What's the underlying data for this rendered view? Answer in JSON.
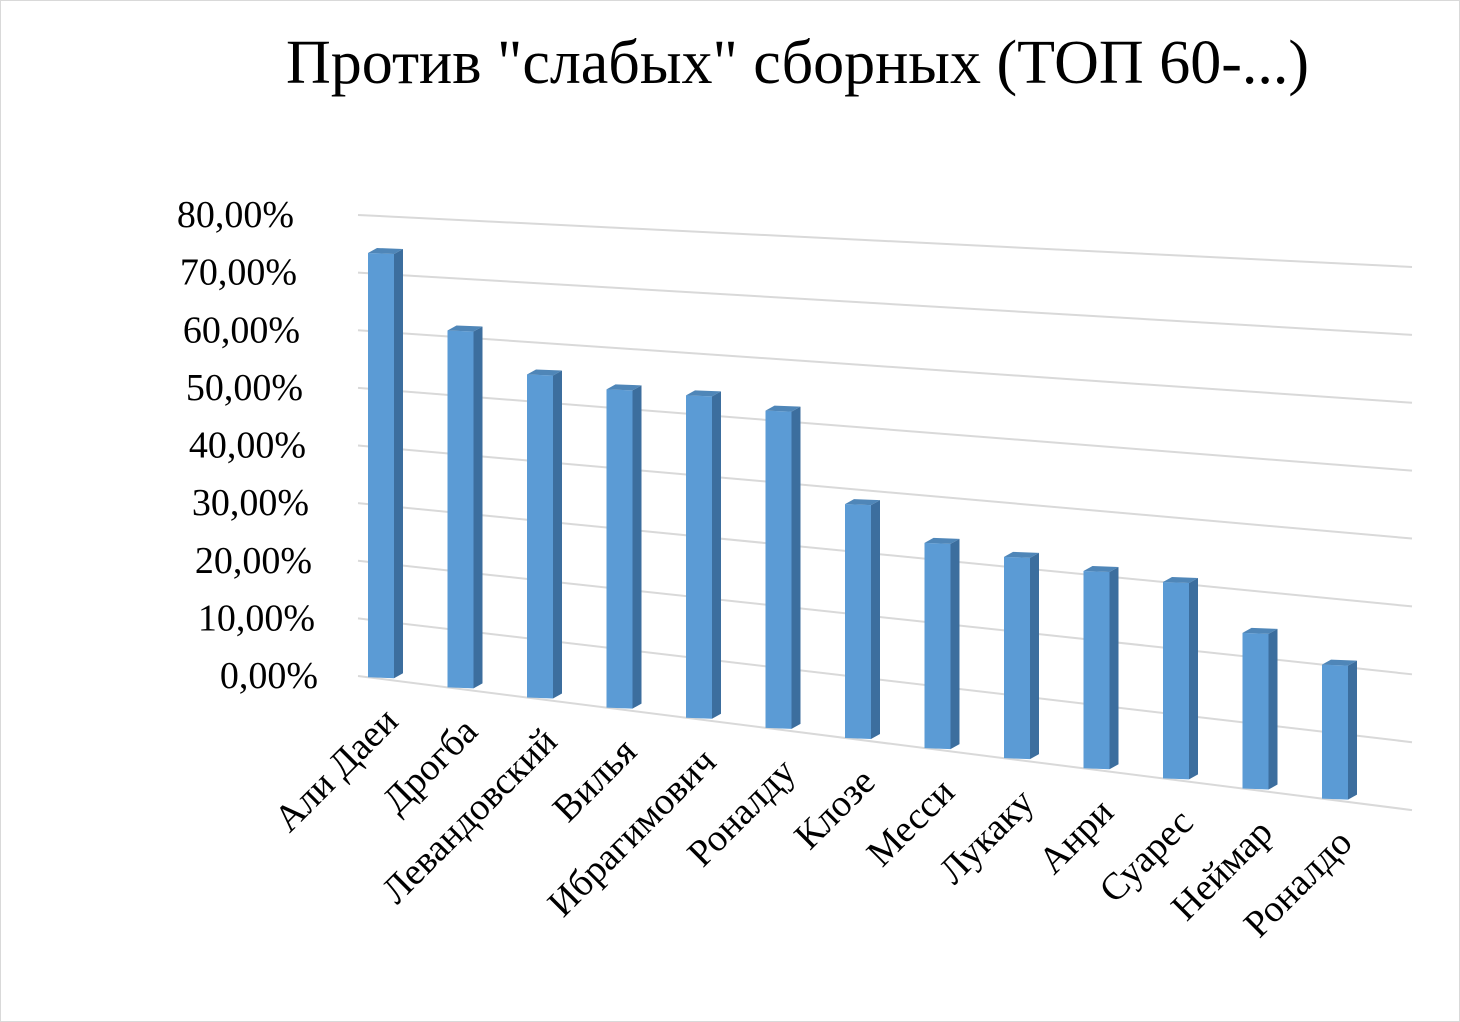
{
  "chart_data": {
    "type": "bar",
    "title": "Против \"слабых\" сборных (ТОП 60-...)",
    "categories": [
      "Али Даеи",
      "Дрогба",
      "Левандовский",
      "Вилья",
      "Ибрагимович",
      "Роналду",
      "Клозе",
      "Месси",
      "Лукаку",
      "Анри",
      "Суарес",
      "Неймар",
      "Роналдо"
    ],
    "values": [
      73.5,
      61,
      54.5,
      53,
      53,
      51.5,
      37.5,
      32.5,
      31.5,
      30.5,
      30,
      23.5,
      20
    ],
    "ylim": [
      0,
      80
    ],
    "yticks": [
      "0,00%",
      "10,00%",
      "20,00%",
      "30,00%",
      "40,00%",
      "50,00%",
      "60,00%",
      "70,00%",
      "80,00%"
    ],
    "xlabel": "",
    "ylabel": "",
    "grid": true,
    "style": "3d-column",
    "colors": {
      "bar_front": "#5b9bd5",
      "bar_side": "#3c6e9e",
      "bar_top": "#4f86b8",
      "grid": "#d9d9d9"
    }
  }
}
